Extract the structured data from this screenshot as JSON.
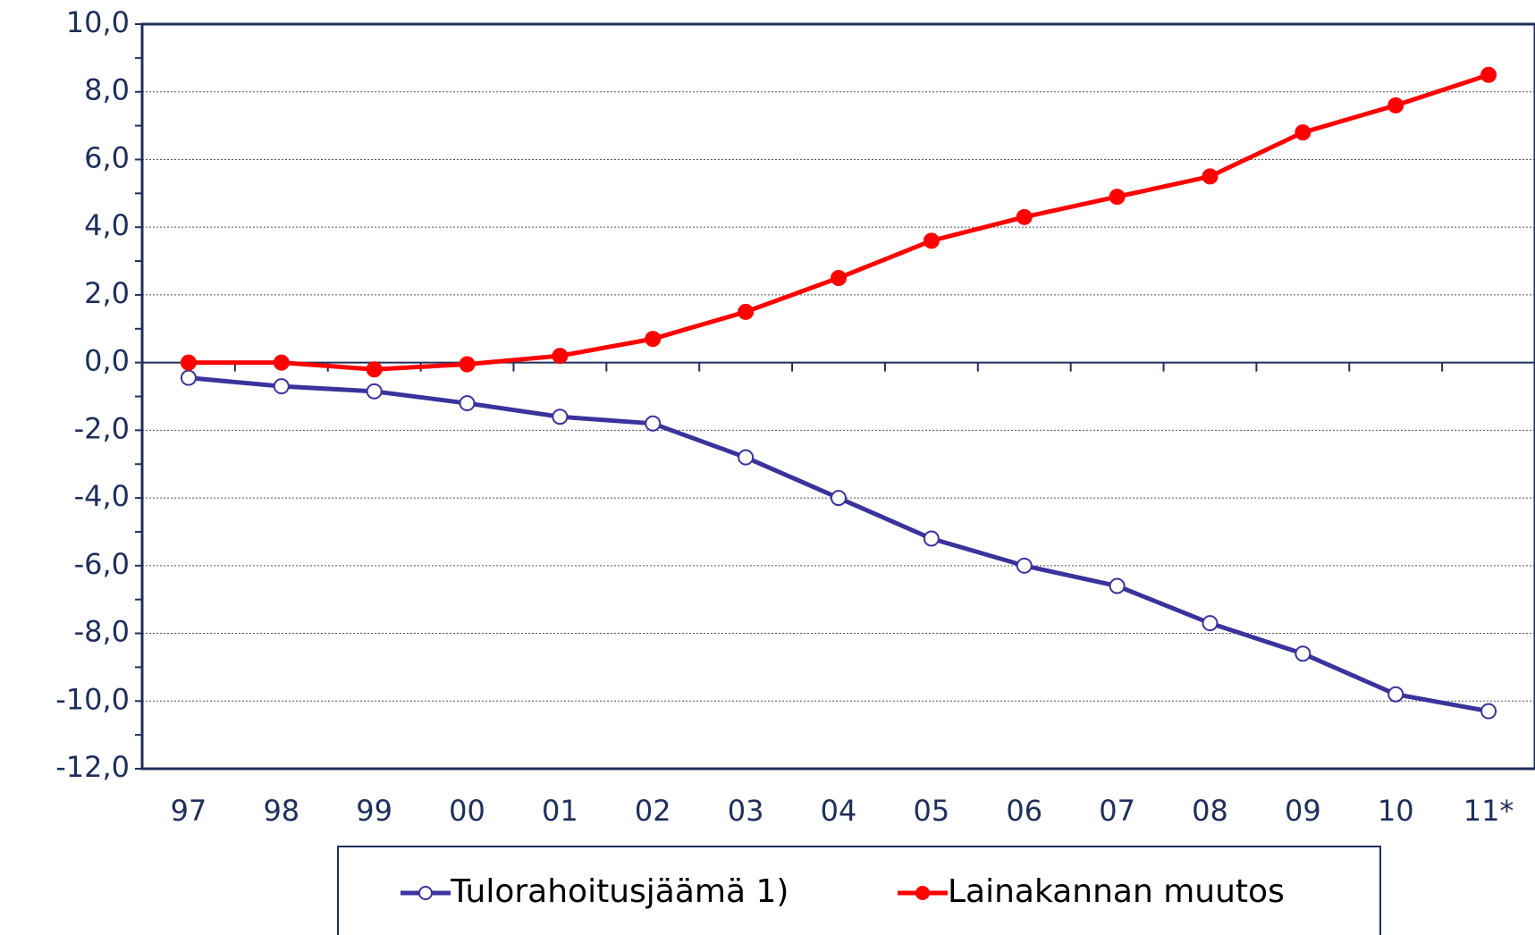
{
  "chart_data": {
    "type": "line",
    "categories": [
      "97",
      "98",
      "99",
      "00",
      "01",
      "02",
      "03",
      "04",
      "05",
      "06",
      "07",
      "08",
      "09",
      "10",
      "11*"
    ],
    "series": [
      {
        "name": "Tulorahoitusjäämä 1)",
        "color": "#3a339c",
        "marker": "open",
        "values": [
          -0.45,
          -0.7,
          -0.85,
          -1.2,
          -1.6,
          -1.8,
          -2.8,
          -4.0,
          -5.2,
          -6.0,
          -6.6,
          -7.7,
          -8.6,
          -9.8,
          -10.3
        ]
      },
      {
        "name": "Lainakannan muutos",
        "color": "#ff0000",
        "marker": "filled",
        "values": [
          0.0,
          0.0,
          -0.2,
          -0.05,
          0.2,
          0.7,
          1.5,
          2.5,
          3.6,
          4.3,
          4.9,
          5.5,
          6.8,
          7.6,
          8.5
        ]
      }
    ],
    "ylim": [
      -12,
      10
    ],
    "yticks": [
      {
        "value": -12,
        "label": "-12,0"
      },
      {
        "value": -10,
        "label": "-10,0"
      },
      {
        "value": -8,
        "label": "-8,0"
      },
      {
        "value": -6,
        "label": "-6,0"
      },
      {
        "value": -4,
        "label": "-4,0"
      },
      {
        "value": -2,
        "label": "-2,0"
      },
      {
        "value": 0,
        "label": "0,0"
      },
      {
        "value": 2,
        "label": "2,0"
      },
      {
        "value": 4,
        "label": "4,0"
      },
      {
        "value": 6,
        "label": "6,0"
      },
      {
        "value": 8,
        "label": "8,0"
      },
      {
        "value": 10,
        "label": "10,0"
      }
    ],
    "grid": true
  }
}
